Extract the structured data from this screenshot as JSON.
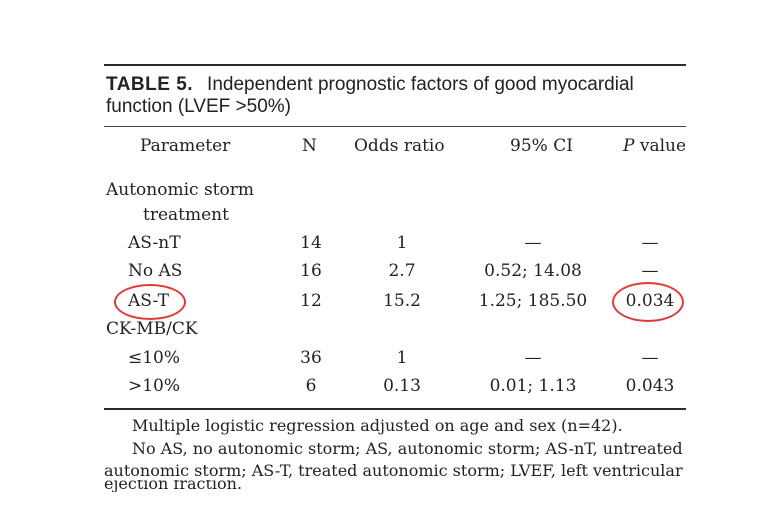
{
  "table": {
    "label": "TABLE 5.",
    "caption": "Independent prognostic factors of good myocardial function (LVEF >50%)",
    "columns": {
      "parameter": "Parameter",
      "n": "N",
      "odds_ratio": "Odds ratio",
      "ci": "95% CI",
      "p_prefix": "P",
      "p_suffix": " value"
    },
    "groups": [
      {
        "heading_line1": "Autonomic storm",
        "heading_line2": "treatment",
        "rows": [
          {
            "parameter": "AS-nT",
            "n": "14",
            "odds_ratio": "1",
            "ci": "—",
            "p": "—"
          },
          {
            "parameter": "No AS",
            "n": "16",
            "odds_ratio": "2.7",
            "ci": "0.52; 14.08",
            "p": "—"
          },
          {
            "parameter": "AS-T",
            "n": "12",
            "odds_ratio": "15.2",
            "ci": "1.25; 185.50",
            "p": "0.034"
          }
        ]
      },
      {
        "heading_line1": "CK-MB/CK",
        "rows": [
          {
            "parameter": "≤10%",
            "n": "36",
            "odds_ratio": "1",
            "ci": "—",
            "p": "—"
          },
          {
            "parameter": ">10%",
            "n": "6",
            "odds_ratio": "0.13",
            "ci": "0.01; 1.13",
            "p": "0.043"
          }
        ]
      }
    ],
    "footnotes": [
      "Multiple logistic regression adjusted on age and sex (n=42).",
      "No AS, no autonomic storm; AS, autonomic storm; AS-nT, untreated",
      "autonomic storm; AS-T, treated autonomic storm; LVEF, left ventricular",
      "ejection fraction."
    ]
  },
  "highlight_color": "#e03a3a"
}
